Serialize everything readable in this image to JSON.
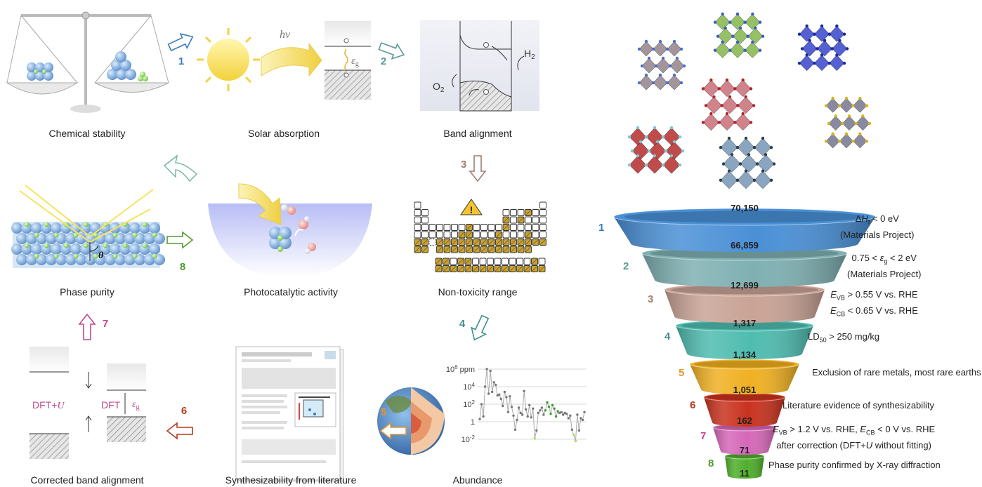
{
  "left_panel": {
    "stages": [
      {
        "label": "Chemical stability"
      },
      {
        "label": "Solar absorption"
      },
      {
        "label": "Band alignment"
      },
      {
        "label": "Non-toxicity range"
      },
      {
        "label": "Abundance"
      },
      {
        "label": "Synthesizability from literature"
      },
      {
        "label": "Corrected band alignment"
      },
      {
        "label": "Phase purity"
      },
      {
        "label": "Photocatalytic activity"
      }
    ],
    "step_numbers": [
      "1",
      "2",
      "3",
      "4",
      "5",
      "6",
      "7",
      "8"
    ],
    "step_colors": [
      "#3a7bbf",
      "#5b9a95",
      "#a07d72",
      "#3f8f8c",
      "#e8952e",
      "#b33a1e",
      "#c2488a",
      "#4f9a2c"
    ],
    "solar": {
      "hv": "hν",
      "eg": "ε",
      "eg_sub": "g"
    },
    "band": {
      "h2": "H",
      "h2_sub": "2",
      "o2": "O",
      "o2_sub": "2"
    },
    "phase": {
      "theta": "θ"
    },
    "corrected": {
      "dftu": "DFT+",
      "dftu_u": "U",
      "dft": "DFT",
      "eg": "ε",
      "eg_sub": "g"
    },
    "abundance": {
      "ticks": [
        {
          "base": "10",
          "exp": "6",
          "unit": " ppm"
        },
        {
          "base": "10",
          "exp": "4",
          "unit": ""
        },
        {
          "base": "10",
          "exp": "2",
          "unit": ""
        },
        {
          "base": "1",
          "exp": "",
          "unit": ""
        },
        {
          "base": "10",
          "exp": "-2",
          "unit": ""
        }
      ]
    }
  },
  "funnel": {
    "top_count": "70,150",
    "layers": [
      {
        "step": "1",
        "count": "66,859",
        "color": "#4a90d6",
        "lines": [
          [
            {
              "t": "Δ"
            },
            {
              "t": "H",
              "i": true
            },
            {
              "t": "f",
              "sub": true
            },
            {
              "t": " < 0 eV"
            }
          ],
          [
            {
              "t": "(Materials Project)"
            }
          ]
        ]
      },
      {
        "step": "2",
        "count": "12,699",
        "color": "#7fb0b2",
        "lines": [
          [
            {
              "t": "0.75 < "
            },
            {
              "t": "ε",
              "i": true
            },
            {
              "t": "g",
              "sub": true
            },
            {
              "t": " < 2 eV"
            }
          ],
          [
            {
              "t": "(Materials Project)"
            }
          ]
        ]
      },
      {
        "step": "3",
        "count": "1,317",
        "color": "#c9a396",
        "lines": [
          [
            {
              "t": "E",
              "i": true
            },
            {
              "t": "VB",
              "sub": true
            },
            {
              "t": " > 0.55 V vs. RHE"
            }
          ],
          [
            {
              "t": "E",
              "i": true
            },
            {
              "t": "CB",
              "sub": true
            },
            {
              "t": " < 0.65 V vs. RHE"
            }
          ]
        ]
      },
      {
        "step": "4",
        "count": "1,134",
        "color": "#4fbcb0",
        "lines": [
          [
            {
              "t": "LD"
            },
            {
              "t": "50",
              "sub": true
            },
            {
              "t": " > 250 mg/kg"
            }
          ]
        ]
      },
      {
        "step": "5",
        "count": "1,051",
        "color": "#f0b022",
        "lines": [
          [
            {
              "t": "Exclusion of rare metals, most rare earths"
            }
          ]
        ]
      },
      {
        "step": "6",
        "count": "162",
        "color": "#c8321e",
        "lines": [
          [
            {
              "t": "Literature evidence of synthesizability"
            }
          ]
        ]
      },
      {
        "step": "7",
        "count": "71",
        "color": "#d567b8",
        "lines": [
          [
            {
              "t": "E",
              "i": true
            },
            {
              "t": "VB",
              "sub": true
            },
            {
              "t": " > 1.2 V vs. RHE, "
            },
            {
              "t": "E",
              "i": true
            },
            {
              "t": "CB",
              "sub": true
            },
            {
              "t": " < 0 V vs. RHE"
            }
          ],
          [
            {
              "t": "after correction (DFT+"
            },
            {
              "t": "U",
              "i": true
            },
            {
              "t": " without fitting)"
            }
          ]
        ]
      },
      {
        "step": "8",
        "count": "11",
        "color": "#4fae2c",
        "lines": [
          [
            {
              "t": "Phase purity confirmed by X-ray diffraction"
            }
          ]
        ]
      }
    ]
  }
}
